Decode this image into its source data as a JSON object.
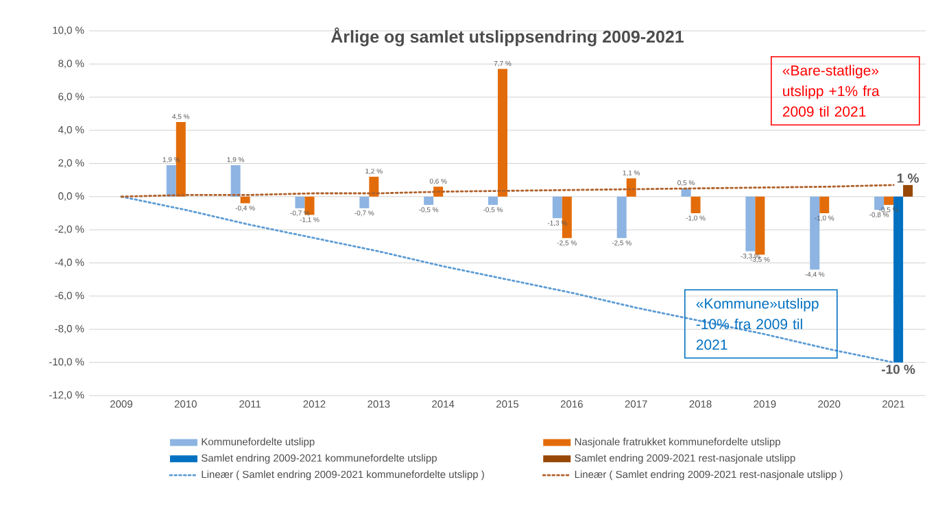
{
  "chart_data": {
    "type": "bar",
    "title": "Årlige og samlet utslippsendring 2009-2021",
    "categories": [
      "2009",
      "2010",
      "2011",
      "2012",
      "2013",
      "2014",
      "2015",
      "2016",
      "2017",
      "2018",
      "2019",
      "2020",
      "2021"
    ],
    "series": [
      {
        "name": "Kommunefordelte utslipp",
        "color": "#8db4e2",
        "values": [
          null,
          1.9,
          1.9,
          -0.7,
          -0.7,
          -0.5,
          -0.5,
          -1.3,
          -2.5,
          0.5,
          -3.3,
          -4.4,
          -0.8
        ],
        "value_labels": [
          null,
          "1,9 %",
          "1,9 %",
          "-0,7 %",
          "-0,7 %",
          "-0,5 %",
          "-0,5 %",
          "-1,3 %",
          "-2,5 %",
          "0,5 %",
          "-3,3 %",
          "-4,4 %",
          "-0,8 %"
        ]
      },
      {
        "name": "Nasjonale fratrukket kommunefordelte utslipp",
        "color": "#e36c0a",
        "values": [
          null,
          4.5,
          -0.4,
          -1.1,
          1.2,
          0.6,
          7.7,
          -2.5,
          1.1,
          -1.0,
          -3.5,
          -1.0,
          -0.5
        ],
        "value_labels": [
          null,
          "4,5 %",
          "-0,4 %",
          "-1,1 %",
          "1,2 %",
          "0,6 %",
          "7,7 %",
          "-2,5 %",
          "1,1 %",
          "-1,0 %",
          "-3,5 %",
          "-1,0 %",
          "-0,5 %"
        ]
      },
      {
        "name": "Samlet endring 2009-2021 kommunefordelte utslipp",
        "color": "#0070c0",
        "values": [
          null,
          null,
          null,
          null,
          null,
          null,
          null,
          null,
          null,
          null,
          null,
          null,
          -10
        ],
        "value_labels": [
          null,
          null,
          null,
          null,
          null,
          null,
          null,
          null,
          null,
          null,
          null,
          null,
          "-10 %"
        ]
      },
      {
        "name": "Samlet endring 2009-2021 rest-nasjonale utslipp",
        "color": "#974706",
        "values": [
          null,
          null,
          null,
          null,
          null,
          null,
          null,
          null,
          null,
          null,
          null,
          null,
          0.7
        ],
        "value_labels": [
          null,
          null,
          null,
          null,
          null,
          null,
          null,
          null,
          null,
          null,
          null,
          null,
          "1 %"
        ]
      },
      {
        "name": "Lineær ( Samlet endring 2009-2021 kommunefordelte utslipp )",
        "type": "line",
        "color": "#5b9bd5",
        "line_style": "dotted",
        "marker": "none",
        "values": [
          0,
          -0.8,
          -1.7,
          -2.5,
          -3.3,
          -4.2,
          -5.0,
          -5.8,
          -6.7,
          -7.5,
          -8.3,
          -9.2,
          -10
        ]
      },
      {
        "name": "Lineær ( Samlet endring 2009-2021 rest-nasjonale utslipp )",
        "type": "line",
        "color": "#b0602a",
        "line_style": "dotted",
        "marker": "none",
        "values": [
          0,
          0.1,
          0.1,
          0.2,
          0.2,
          0.3,
          0.35,
          0.4,
          0.45,
          0.5,
          0.55,
          0.6,
          0.7
        ]
      }
    ],
    "ylim": [
      -12,
      10
    ],
    "yticks": [
      {
        "value": -12,
        "label": "-12,0 %"
      },
      {
        "value": -10,
        "label": "-10,0 %"
      },
      {
        "value": -8,
        "label": "-8,0 %"
      },
      {
        "value": -6,
        "label": "-6,0 %"
      },
      {
        "value": -4,
        "label": "-4,0 %"
      },
      {
        "value": -2,
        "label": "-2,0 %"
      },
      {
        "value": 0,
        "label": "0,0 %"
      },
      {
        "value": 2,
        "label": "2,0 %"
      },
      {
        "value": 4,
        "label": "4,0 %"
      },
      {
        "value": 6,
        "label": "6,0 %"
      },
      {
        "value": 8,
        "label": "8,0 %"
      },
      {
        "value": 10,
        "label": "10,0 %"
      }
    ],
    "grid": "y",
    "legend": "bottom",
    "annotations": [
      "«Bare-statlige» utslipp +1% fra 2009 til 2021",
      "«Kommune»utslipp -10% fra 2009 til 2021"
    ]
  }
}
